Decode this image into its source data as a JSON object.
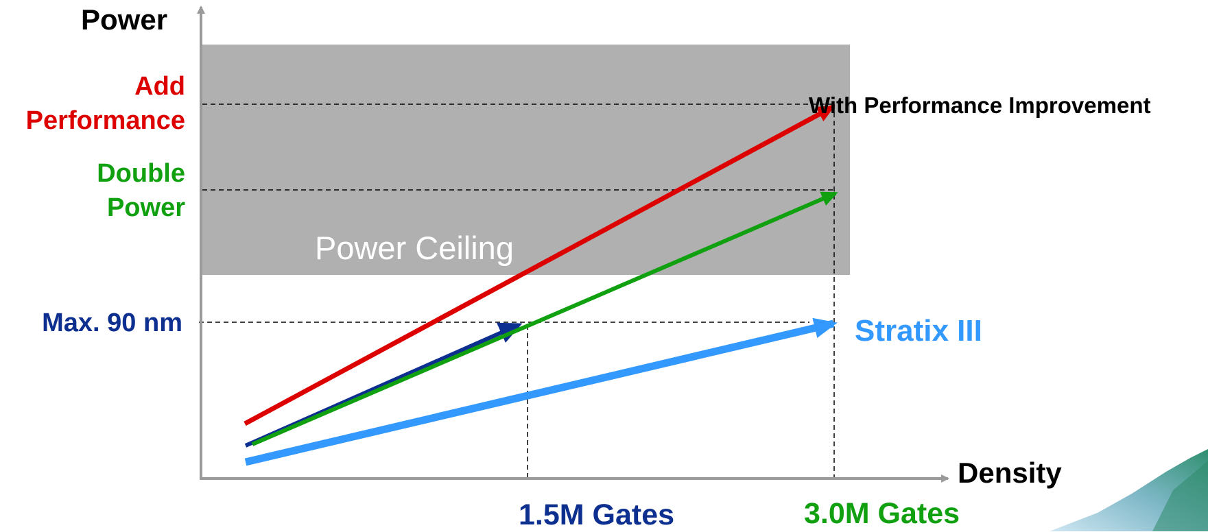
{
  "axes": {
    "y_label": "Power",
    "x_label": "Density"
  },
  "y_levels": {
    "add_performance": "Add\nPerformance",
    "double_power": "Double\nPower",
    "max_90nm": "Max. 90 nm"
  },
  "x_levels": {
    "gates_1_5m": "1.5M Gates",
    "gates_3_0m": "3.0M Gates"
  },
  "region": {
    "power_ceiling": "Power Ceiling"
  },
  "annotations": {
    "performance_improvement": "With Performance Improvement",
    "stratix": "Stratix III"
  },
  "colors": {
    "red": "#dd0000",
    "green": "#10a010",
    "navy": "#0d2f8f",
    "blue": "#3399ff",
    "ceiling": "#b0b0b0",
    "axis": "#9a9a9a",
    "ceiling_text": "#ffffff"
  }
}
